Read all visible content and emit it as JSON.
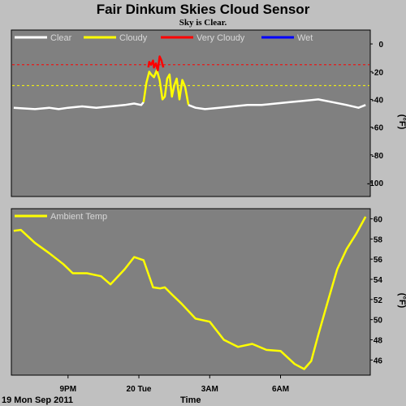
{
  "header": {
    "title": "Fair Dinkum Skies Cloud Sensor",
    "subtitle": "Sky is Clear."
  },
  "footer": {
    "date": "19 Mon Sep 2011",
    "xlabel": "Time",
    "time_ticks": [
      "9PM",
      "20 Tue",
      "3AM",
      "6AM"
    ]
  },
  "colors": {
    "background": "#c0c0c0",
    "plot_bg": "#808080",
    "clear": "#ffffff",
    "cloudy": "#ffff00",
    "very_cloudy": "#ff0000",
    "wet": "#0000ff",
    "cloudy_threshold": "#ffff00",
    "very_cloudy_threshold": "#ff0000"
  },
  "chart_data": [
    {
      "type": "line",
      "title": "Fair Dinkum Skies Cloud Sensor",
      "ylabel": "(°F)",
      "ylim": [
        -110,
        10
      ],
      "yticks": [
        0,
        -20,
        -40,
        -60,
        -80,
        -100
      ],
      "xlim": [
        19.8,
        27.4
      ],
      "grid": false,
      "legend_position": "top-left",
      "legend": [
        "Clear",
        "Cloudy",
        "Very Cloudy",
        "Wet"
      ],
      "thresholds": [
        {
          "name": "Very Cloudy",
          "value": -15
        },
        {
          "name": "Cloudy",
          "value": -30
        }
      ],
      "series": [
        {
          "name": "Clear",
          "x": [
            19.85,
            20.3,
            20.6,
            20.8,
            21.0,
            21.3,
            21.6,
            21.9,
            22.2,
            22.4,
            22.55,
            22.6
          ],
          "values": [
            -46,
            -47,
            -46,
            -47,
            -46,
            -45,
            -46,
            -45,
            -44,
            -43,
            -44,
            -42
          ]
        },
        {
          "name": "Cloudy",
          "x": [
            22.6,
            22.66,
            22.72,
            22.76,
            22.82,
            22.88,
            22.94,
            23.0,
            23.05,
            23.1,
            23.15,
            23.2,
            23.25,
            23.3,
            23.36,
            23.42,
            23.48,
            23.55
          ],
          "values": [
            -42,
            -28,
            -20,
            -22,
            -24,
            -19,
            -26,
            -40,
            -38,
            -25,
            -22,
            -38,
            -30,
            -25,
            -40,
            -26,
            -31,
            -44
          ]
        },
        {
          "name": "Clear",
          "x": [
            23.55,
            23.7,
            23.9,
            24.2,
            24.5,
            24.8,
            25.1,
            25.4,
            25.7,
            26.0,
            26.3,
            26.6,
            26.9,
            27.15,
            27.3
          ],
          "values": [
            -44,
            -46,
            -47,
            -46,
            -45,
            -44,
            -44,
            -43,
            -42,
            -41,
            -40,
            -42,
            -44,
            -46,
            -44
          ]
        },
        {
          "name": "Very Cloudy",
          "x": [
            22.7,
            22.72,
            22.76,
            22.8,
            22.82,
            22.86,
            22.9,
            22.94,
            22.98,
            23.0,
            23.02
          ],
          "values": [
            -17,
            -13,
            -15,
            -12,
            -17,
            -14,
            -19,
            -9,
            -12,
            -15,
            -17
          ]
        },
        {
          "name": "Wet",
          "x": [],
          "values": []
        }
      ]
    },
    {
      "type": "line",
      "ylabel": "(°F)",
      "ylim": [
        44.5,
        61
      ],
      "yticks": [
        46,
        48,
        50,
        52,
        54,
        56,
        58,
        60
      ],
      "xlim": [
        19.8,
        27.4
      ],
      "grid": false,
      "legend_position": "top-left",
      "legend": [
        "Ambient Temp"
      ],
      "series": [
        {
          "name": "Ambient Temp",
          "x": [
            19.85,
            20.0,
            20.3,
            20.6,
            20.9,
            21.1,
            21.4,
            21.7,
            21.9,
            22.2,
            22.4,
            22.6,
            22.8,
            22.95,
            23.05,
            23.2,
            23.4,
            23.7,
            24.0,
            24.3,
            24.6,
            24.9,
            25.2,
            25.5,
            25.8,
            26.0,
            26.15,
            26.3,
            26.5,
            26.7,
            26.9,
            27.1,
            27.3
          ],
          "values": [
            58.8,
            58.9,
            57.6,
            56.6,
            55.5,
            54.6,
            54.6,
            54.3,
            53.5,
            55.0,
            56.2,
            55.9,
            53.2,
            53.1,
            53.2,
            52.5,
            51.6,
            50.1,
            49.8,
            48.0,
            47.3,
            47.6,
            47.0,
            46.9,
            45.6,
            45.1,
            45.9,
            48.5,
            51.8,
            55.0,
            57.0,
            58.5,
            60.2
          ]
        }
      ]
    }
  ]
}
